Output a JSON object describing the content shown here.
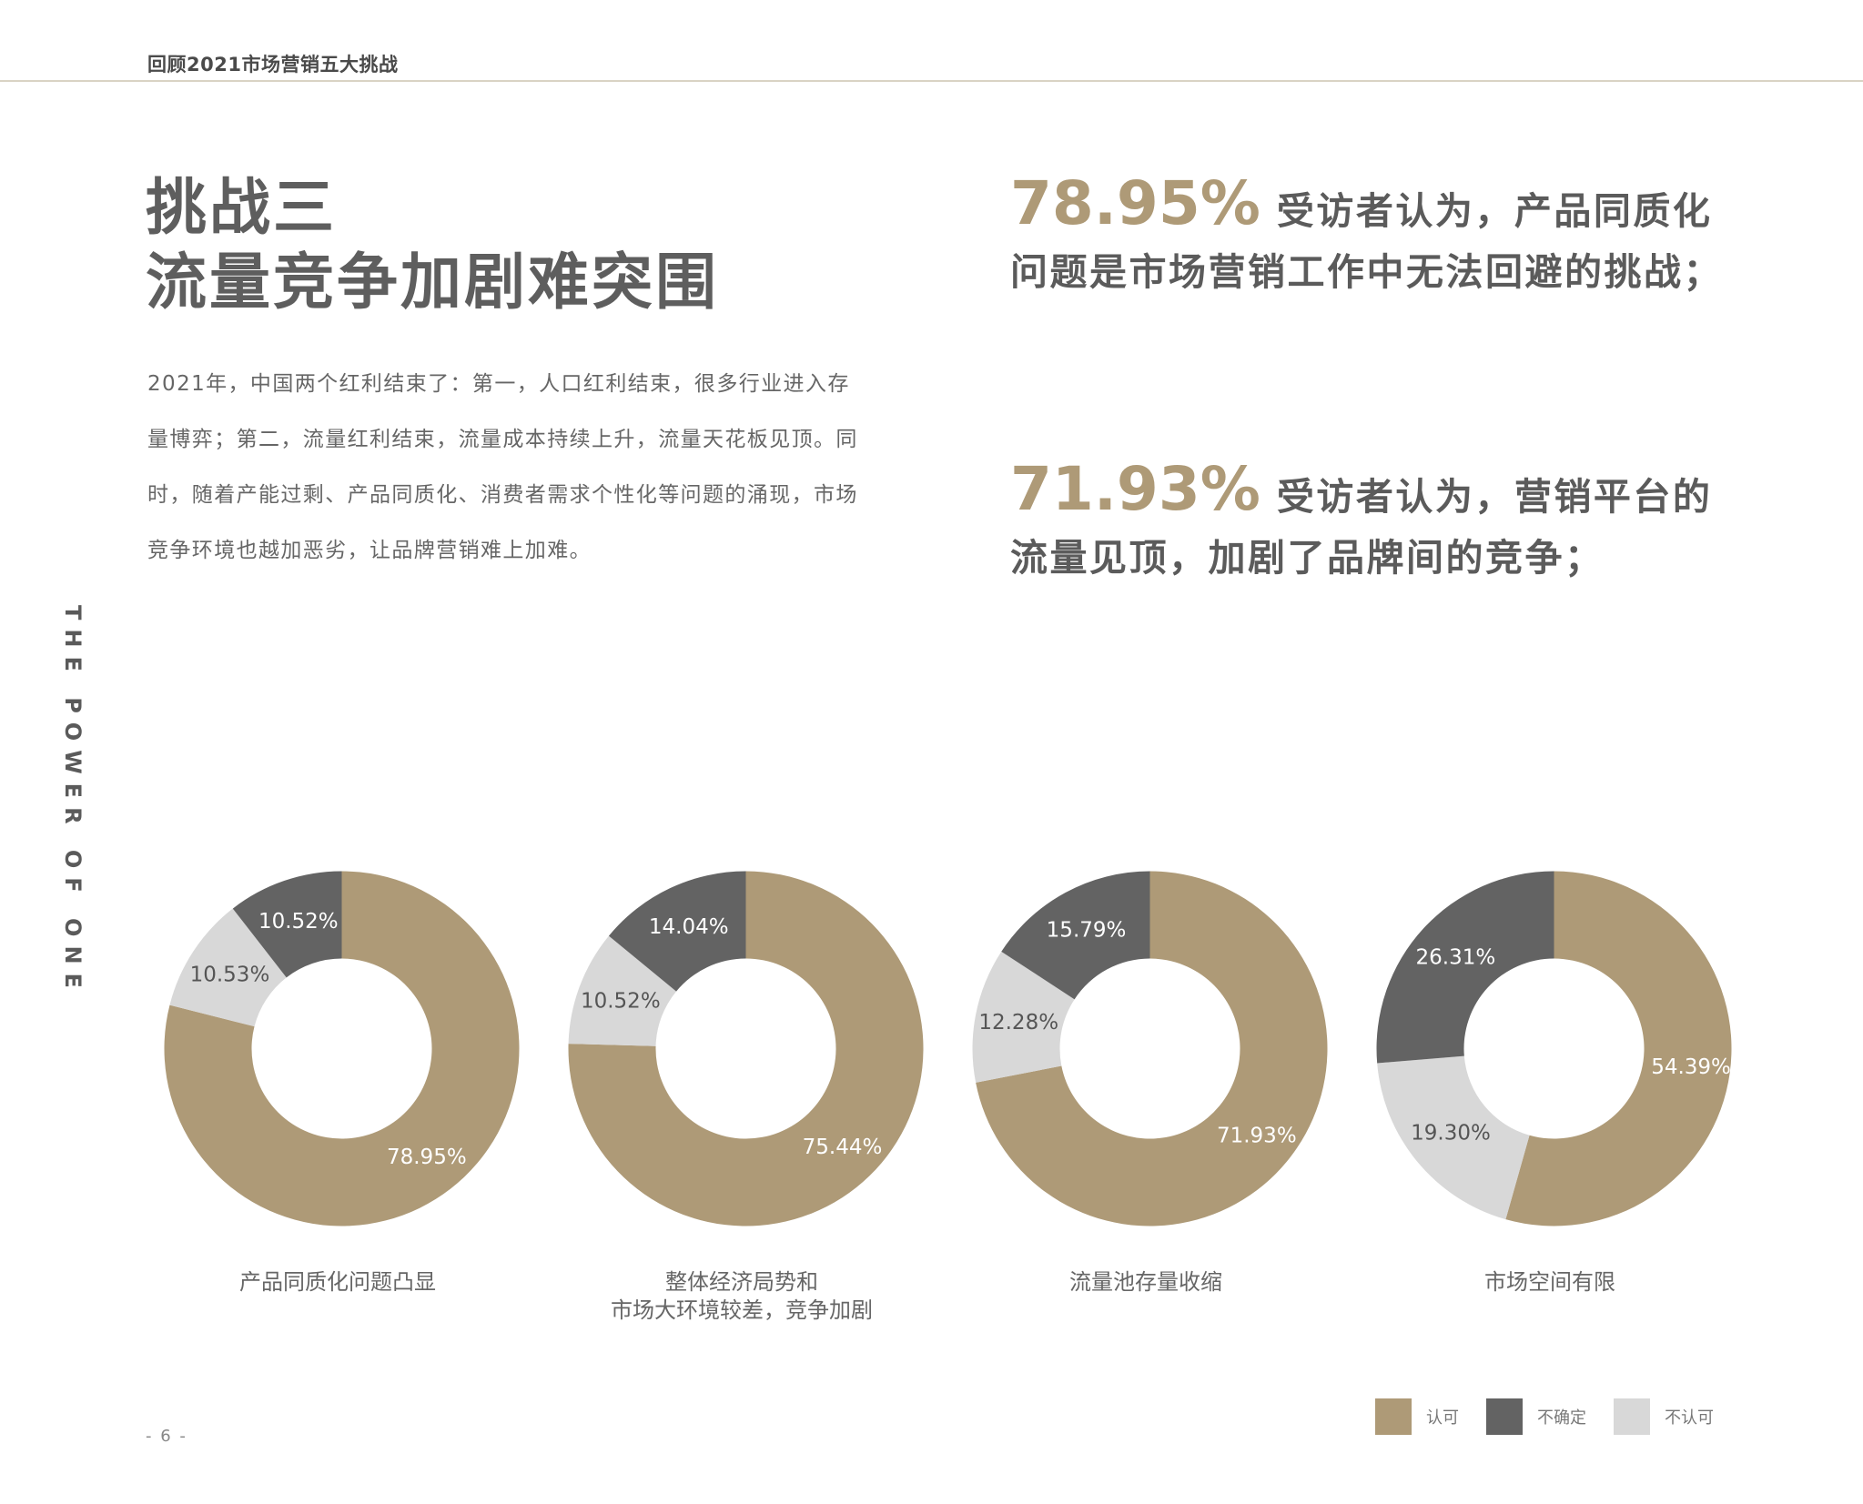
{
  "header": {
    "title": "回顾2021市场营销五大挑战"
  },
  "side_text": "THE POWER OF ONE",
  "main": {
    "title_line1": "挑战三",
    "title_line2": "流量竞争加剧难突围",
    "intro": "2021年，中国两个红利结束了：第一，人口红利结束，很多行业进入存量博弈；第二，流量红利结束，流量成本持续上升，流量天花板见顶。同时，随着产能过剩、产品同质化、消费者需求个性化等问题的涌现，市场竞争环境也越加恶劣，让品牌营销难上加难。"
  },
  "stats": [
    {
      "percent": "78.95%",
      "text": "受访者认为，产品同质化问题是市场营销工作中无法回避的挑战；"
    },
    {
      "percent": "71.93%",
      "text": "受访者认为，营销平台的流量见顶，加剧了品牌间的竞争；"
    }
  ],
  "colors": {
    "approve": "#ae9a77",
    "uncertain": "#636363",
    "disapprove": "#d8d8d8"
  },
  "chart_data": [
    {
      "type": "pie",
      "title": "产品同质化问题凸显",
      "labels": [
        "认可",
        "不确定",
        "不认可"
      ],
      "values": [
        78.95,
        10.52,
        10.53
      ],
      "value_labels": [
        "78.95%",
        "10.52%",
        "10.53%"
      ],
      "colors": [
        "#ae9a77",
        "#636363",
        "#d8d8d8"
      ]
    },
    {
      "type": "pie",
      "title": "整体经济局势和\n市场大环境较差，竞争加剧",
      "labels": [
        "认可",
        "不确定",
        "不认可"
      ],
      "values": [
        75.44,
        14.04,
        10.52
      ],
      "value_labels": [
        "75.44%",
        "14.04%",
        "10.52%"
      ],
      "colors": [
        "#ae9a77",
        "#636363",
        "#d8d8d8"
      ]
    },
    {
      "type": "pie",
      "title": "流量池存量收缩",
      "labels": [
        "认可",
        "不确定",
        "不认可"
      ],
      "values": [
        71.93,
        15.79,
        12.28
      ],
      "value_labels": [
        "71.93%",
        "15.79%",
        "12.28%"
      ],
      "colors": [
        "#ae9a77",
        "#636363",
        "#d8d8d8"
      ]
    },
    {
      "type": "pie",
      "title": "市场空间有限",
      "labels": [
        "认可",
        "不确定",
        "不认可"
      ],
      "values": [
        54.39,
        26.31,
        19.3
      ],
      "value_labels": [
        "54.39%",
        "26.31%",
        "19.30%"
      ],
      "colors": [
        "#ae9a77",
        "#636363",
        "#d8d8d8"
      ]
    }
  ],
  "legend": [
    {
      "label": "认可",
      "color": "#ae9a77"
    },
    {
      "label": "不确定",
      "color": "#636363"
    },
    {
      "label": "不认可",
      "color": "#d8d8d8"
    }
  ],
  "page_number": "- 6 -"
}
